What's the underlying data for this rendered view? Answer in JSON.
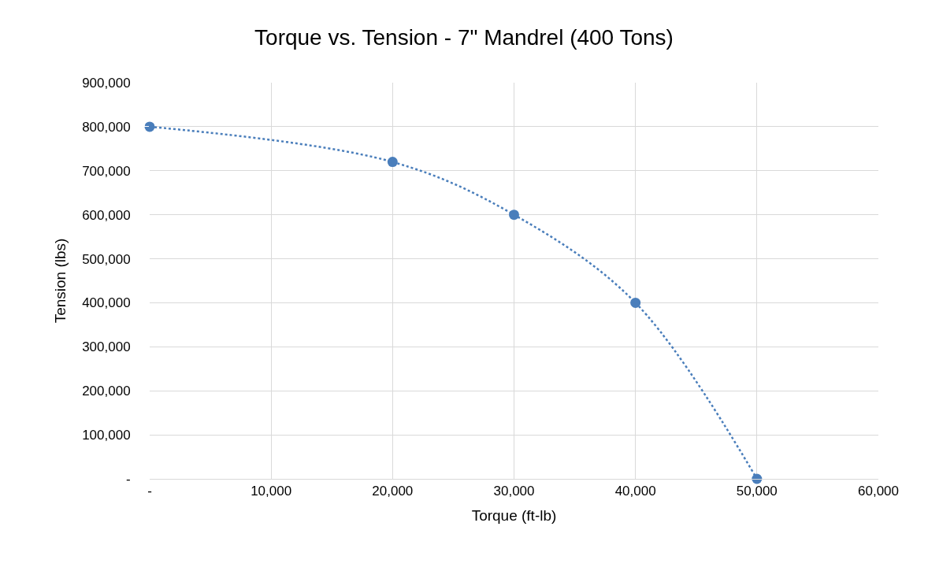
{
  "chart_data": {
    "type": "line",
    "title": "Torque vs. Tension - 7\" Mandrel (400 Tons)",
    "xlabel": "Torque (ft-lb)",
    "ylabel": "Tension (lbs)",
    "x": [
      0,
      20000,
      30000,
      40000,
      50000
    ],
    "series": [
      {
        "color": "#4a7ebb",
        "values": [
          800000,
          720000,
          600000,
          400000,
          0
        ]
      }
    ],
    "xlim": [
      0,
      60000
    ],
    "xticks": [
      {
        "value": 0,
        "label": "-"
      },
      {
        "value": 10000,
        "label": "10,000"
      },
      {
        "value": 20000,
        "label": "20,000"
      },
      {
        "value": 30000,
        "label": "30,000"
      },
      {
        "value": 40000,
        "label": "40,000"
      },
      {
        "value": 50000,
        "label": "50,000"
      },
      {
        "value": 60000,
        "label": "60,000"
      }
    ],
    "ylim": [
      0,
      900000
    ],
    "yticks": [
      {
        "value": 0,
        "label": "-"
      },
      {
        "value": 100000,
        "label": "100,000"
      },
      {
        "value": 200000,
        "label": "200,000"
      },
      {
        "value": 300000,
        "label": "300,000"
      },
      {
        "value": 400000,
        "label": "400,000"
      },
      {
        "value": 500000,
        "label": "500,000"
      },
      {
        "value": 600000,
        "label": "600,000"
      },
      {
        "value": 700000,
        "label": "700,000"
      },
      {
        "value": 800000,
        "label": "800,000"
      },
      {
        "value": 900000,
        "label": "900,000"
      }
    ],
    "grid": true,
    "marker": "circle",
    "line_style": "dotted"
  }
}
